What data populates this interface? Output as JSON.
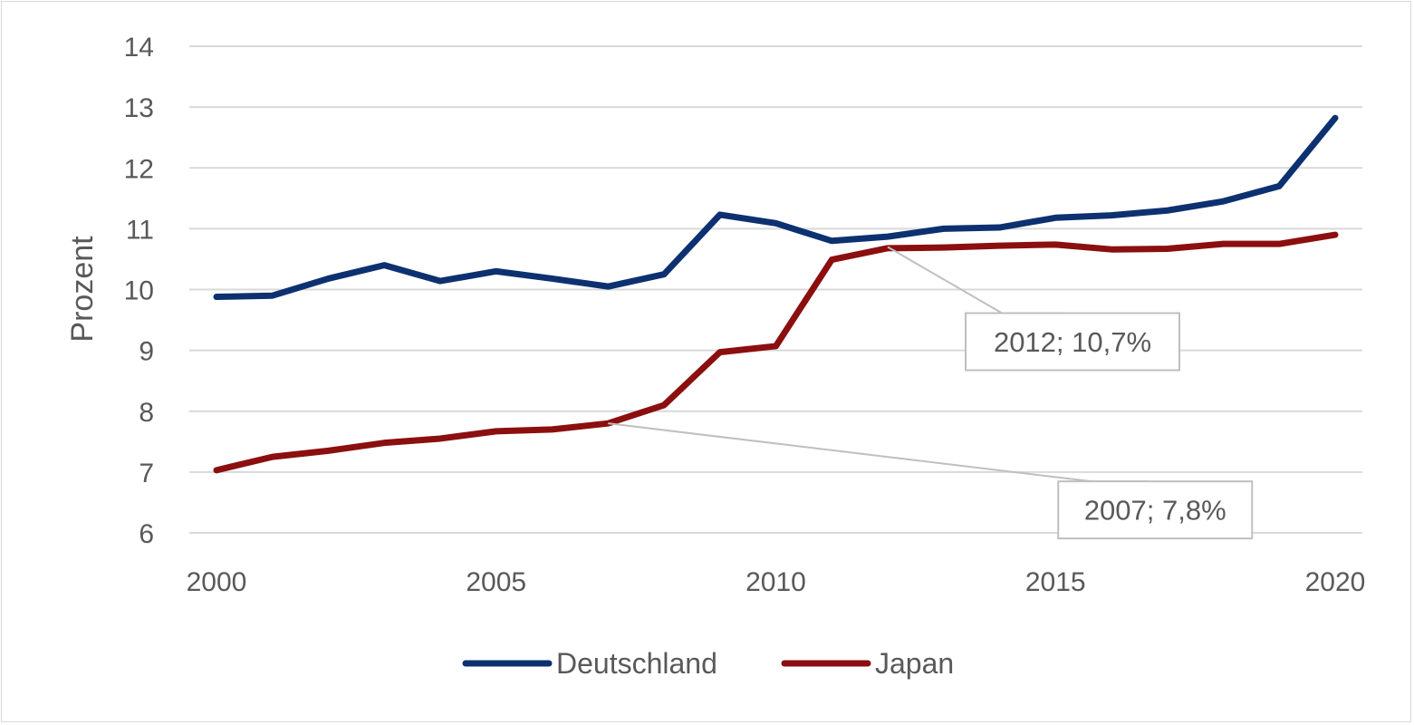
{
  "chart_data": {
    "type": "line",
    "title": "",
    "xlabel": "",
    "ylabel": "Prozent",
    "x": [
      2000,
      2001,
      2002,
      2003,
      2004,
      2005,
      2006,
      2007,
      2008,
      2009,
      2010,
      2011,
      2012,
      2013,
      2014,
      2015,
      2016,
      2017,
      2018,
      2019,
      2020
    ],
    "xticks": [
      2000,
      2005,
      2010,
      2015,
      2020
    ],
    "xlim": [
      2000,
      2020
    ],
    "ylim": [
      6,
      14
    ],
    "yticks": [
      6,
      7,
      8,
      9,
      10,
      11,
      12,
      13,
      14
    ],
    "grid": "horizontal",
    "legend_position": "bottom",
    "series": [
      {
        "name": "Deutschland",
        "color": "#0d3170",
        "values": [
          9.88,
          9.9,
          10.18,
          10.4,
          10.14,
          10.3,
          10.18,
          10.05,
          10.25,
          11.23,
          11.09,
          10.8,
          10.87,
          11.0,
          11.02,
          11.18,
          11.22,
          11.3,
          11.45,
          11.7,
          12.82
        ]
      },
      {
        "name": "Japan",
        "color": "#8b0f0f",
        "values": [
          7.03,
          7.25,
          7.35,
          7.48,
          7.55,
          7.67,
          7.7,
          7.8,
          8.1,
          8.97,
          9.07,
          10.49,
          10.68,
          10.69,
          10.72,
          10.74,
          10.66,
          10.67,
          10.75,
          10.75,
          10.9
        ]
      }
    ],
    "annotations": [
      {
        "series": "Japan",
        "x": 2007,
        "y": 7.8,
        "text": "2007; 7,8%"
      },
      {
        "series": "Japan",
        "x": 2012,
        "y": 10.7,
        "text": "2012; 10,7%"
      }
    ]
  }
}
